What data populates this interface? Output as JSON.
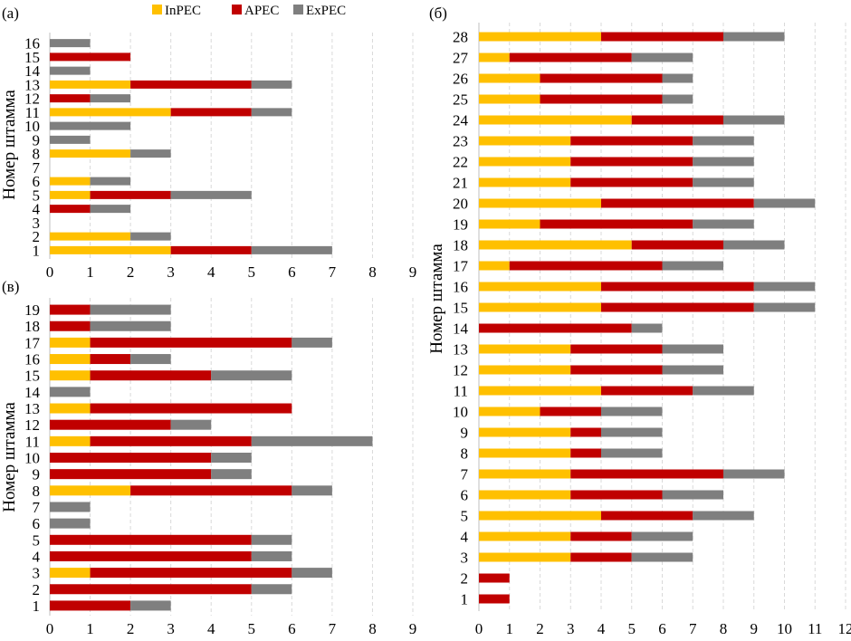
{
  "legend": {
    "items": [
      {
        "label": "InPEC",
        "color": "#FFC000"
      },
      {
        "label": "APEC",
        "color": "#C00000"
      },
      {
        "label": "ExPEC",
        "color": "#7F7F7F"
      }
    ]
  },
  "chart_data": [
    {
      "type": "bar",
      "orientation": "horizontal",
      "stacked": true,
      "panel_label": "(а)",
      "ylabel": "Номер штамма",
      "xlim": [
        0,
        9
      ],
      "xticks": [
        0,
        1,
        2,
        3,
        4,
        5,
        6,
        7,
        8,
        9
      ],
      "grid": true,
      "categories": [
        "1",
        "2",
        "3",
        "4",
        "5",
        "6",
        "7",
        "8",
        "9",
        "10",
        "11",
        "12",
        "13",
        "14",
        "15",
        "16"
      ],
      "series": [
        {
          "name": "InPEC",
          "color": "#FFC000",
          "values": [
            3,
            2,
            0,
            0,
            1,
            1,
            0,
            2,
            0,
            0,
            3,
            0,
            2,
            0,
            0,
            0
          ]
        },
        {
          "name": "APEC",
          "color": "#C00000",
          "values": [
            2,
            0,
            0,
            1,
            2,
            0,
            0,
            0,
            0,
            0,
            2,
            1,
            3,
            0,
            2,
            0
          ]
        },
        {
          "name": "ExPEC",
          "color": "#7F7F7F",
          "values": [
            2,
            1,
            0,
            1,
            2,
            1,
            0,
            1,
            1,
            2,
            1,
            1,
            1,
            1,
            0,
            1
          ]
        }
      ]
    },
    {
      "type": "bar",
      "orientation": "horizontal",
      "stacked": true,
      "panel_label": "(в)",
      "ylabel": "Номер штамма",
      "xlim": [
        0,
        9
      ],
      "xticks": [
        0,
        1,
        2,
        3,
        4,
        5,
        6,
        7,
        8,
        9
      ],
      "grid": true,
      "categories": [
        "1",
        "2",
        "3",
        "4",
        "5",
        "6",
        "7",
        "8",
        "9",
        "10",
        "11",
        "12",
        "13",
        "14",
        "15",
        "16",
        "17",
        "18",
        "19"
      ],
      "series": [
        {
          "name": "InPEC",
          "color": "#FFC000",
          "values": [
            0,
            0,
            1,
            0,
            0,
            0,
            0,
            2,
            0,
            0,
            1,
            0,
            1,
            0,
            1,
            1,
            1,
            0,
            0
          ]
        },
        {
          "name": "APEC",
          "color": "#C00000",
          "values": [
            2,
            5,
            5,
            5,
            5,
            0,
            0,
            4,
            4,
            4,
            4,
            3,
            5,
            0,
            3,
            1,
            5,
            1,
            1
          ]
        },
        {
          "name": "ExPEC",
          "color": "#7F7F7F",
          "values": [
            1,
            1,
            1,
            1,
            1,
            1,
            1,
            1,
            1,
            1,
            3,
            1,
            0,
            1,
            2,
            1,
            1,
            2,
            2
          ]
        }
      ]
    },
    {
      "type": "bar",
      "orientation": "horizontal",
      "stacked": true,
      "panel_label": "(б)",
      "ylabel": "Номер штамма",
      "xlim": [
        0,
        12
      ],
      "xticks": [
        0,
        1,
        2,
        3,
        4,
        5,
        6,
        7,
        8,
        9,
        10,
        11,
        12
      ],
      "grid": true,
      "categories": [
        "1",
        "2",
        "3",
        "4",
        "5",
        "6",
        "7",
        "8",
        "9",
        "10",
        "11",
        "12",
        "13",
        "14",
        "15",
        "16",
        "17",
        "18",
        "19",
        "20",
        "21",
        "22",
        "23",
        "24",
        "25",
        "26",
        "27",
        "28"
      ],
      "series": [
        {
          "name": "InPEC",
          "color": "#FFC000",
          "values": [
            0,
            0,
            3,
            3,
            4,
            3,
            3,
            3,
            3,
            2,
            4,
            3,
            3,
            0,
            4,
            4,
            1,
            5,
            2,
            4,
            3,
            3,
            3,
            5,
            2,
            2,
            1,
            4
          ]
        },
        {
          "name": "APEC",
          "color": "#C00000",
          "values": [
            1,
            1,
            2,
            2,
            3,
            3,
            5,
            1,
            1,
            2,
            3,
            3,
            3,
            5,
            5,
            5,
            5,
            3,
            5,
            5,
            4,
            4,
            4,
            3,
            4,
            4,
            4,
            4
          ]
        },
        {
          "name": "ExPEC",
          "color": "#7F7F7F",
          "values": [
            0,
            0,
            2,
            2,
            2,
            2,
            2,
            2,
            2,
            2,
            2,
            2,
            2,
            1,
            2,
            2,
            2,
            2,
            2,
            2,
            2,
            2,
            2,
            2,
            1,
            1,
            2,
            2
          ]
        }
      ]
    }
  ]
}
